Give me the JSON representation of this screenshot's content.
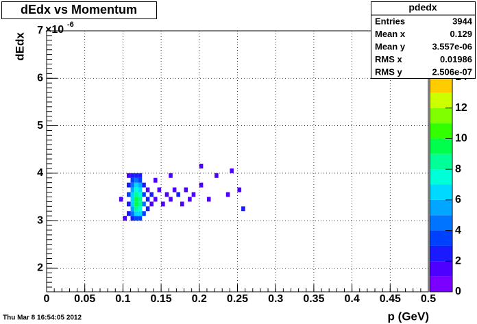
{
  "chart_data": {
    "type": "heatmap",
    "title": "dEdx vs Momentum",
    "xlabel": "p (GeV)",
    "ylabel": "dEdx",
    "y_exponent": {
      "base": "×10",
      "power": "-6"
    },
    "footer": "Thu Mar  8 16:54:05 2012",
    "xlim": [
      0,
      0.5
    ],
    "xticks": [
      0,
      0.05,
      0.1,
      0.15,
      0.2,
      0.25,
      0.3,
      0.35,
      0.4,
      0.45,
      0.5
    ],
    "ylim": [
      1.5,
      7
    ],
    "yticks": [
      2,
      3,
      4,
      5,
      6,
      7
    ],
    "zlim": [
      0,
      14
    ],
    "zticks": [
      0,
      2,
      4,
      6,
      8,
      10,
      12,
      14
    ],
    "grid": true,
    "xbin": 0.005,
    "ybin": 0.1,
    "palette": [
      "#7a00ff",
      "#4d00ff",
      "#1a1aff",
      "#0040ff",
      "#0073ff",
      "#00a6ff",
      "#00d9ff",
      "#00ffd9",
      "#00ff99",
      "#00ff4d",
      "#33ff00",
      "#80ff00",
      "#ccff00",
      "#ffcc00"
    ],
    "cells": [
      [
        0.105,
        3.1,
        2
      ],
      [
        0.105,
        3.3,
        2
      ],
      [
        0.105,
        3.5,
        3
      ],
      [
        0.105,
        3.7,
        2
      ],
      [
        0.105,
        3.9,
        1
      ],
      [
        0.11,
        3.0,
        2
      ],
      [
        0.11,
        3.1,
        4
      ],
      [
        0.11,
        3.2,
        5
      ],
      [
        0.11,
        3.3,
        6
      ],
      [
        0.11,
        3.4,
        6
      ],
      [
        0.11,
        3.5,
        6
      ],
      [
        0.11,
        3.6,
        5
      ],
      [
        0.11,
        3.7,
        4
      ],
      [
        0.11,
        3.8,
        3
      ],
      [
        0.11,
        3.9,
        2
      ],
      [
        0.115,
        3.0,
        3
      ],
      [
        0.115,
        3.1,
        6
      ],
      [
        0.115,
        3.2,
        8
      ],
      [
        0.115,
        3.3,
        9
      ],
      [
        0.115,
        3.4,
        9
      ],
      [
        0.115,
        3.5,
        8
      ],
      [
        0.115,
        3.6,
        7
      ],
      [
        0.115,
        3.7,
        6
      ],
      [
        0.115,
        3.8,
        4
      ],
      [
        0.115,
        3.9,
        2
      ],
      [
        0.12,
        3.0,
        3
      ],
      [
        0.12,
        3.1,
        6
      ],
      [
        0.12,
        3.2,
        7
      ],
      [
        0.12,
        3.3,
        8
      ],
      [
        0.12,
        3.4,
        8
      ],
      [
        0.12,
        3.5,
        7
      ],
      [
        0.12,
        3.6,
        6
      ],
      [
        0.12,
        3.7,
        5
      ],
      [
        0.12,
        3.8,
        3
      ],
      [
        0.12,
        3.9,
        2
      ],
      [
        0.125,
        3.1,
        3
      ],
      [
        0.125,
        3.3,
        4
      ],
      [
        0.125,
        3.5,
        3
      ],
      [
        0.125,
        3.7,
        2
      ],
      [
        0.13,
        3.2,
        2
      ],
      [
        0.13,
        3.4,
        2
      ],
      [
        0.13,
        3.6,
        1
      ],
      [
        0.135,
        3.3,
        1
      ],
      [
        0.135,
        3.5,
        2
      ],
      [
        0.14,
        3.4,
        1
      ],
      [
        0.145,
        3.6,
        1
      ],
      [
        0.15,
        3.3,
        1
      ],
      [
        0.155,
        3.5,
        1
      ],
      [
        0.16,
        3.4,
        1
      ],
      [
        0.165,
        3.6,
        1
      ],
      [
        0.17,
        3.5,
        2
      ],
      [
        0.175,
        3.3,
        1
      ],
      [
        0.18,
        3.6,
        1
      ],
      [
        0.185,
        3.4,
        1
      ],
      [
        0.19,
        3.5,
        1
      ],
      [
        0.2,
        3.7,
        1
      ],
      [
        0.21,
        3.4,
        1
      ],
      [
        0.22,
        3.9,
        1
      ],
      [
        0.235,
        3.5,
        1
      ],
      [
        0.25,
        3.6,
        1
      ],
      [
        0.255,
        3.2,
        2
      ],
      [
        0.095,
        3.4,
        1
      ],
      [
        0.1,
        3.0,
        1
      ],
      [
        0.2,
        4.1,
        1
      ],
      [
        0.24,
        4.0,
        1
      ],
      [
        0.14,
        3.8,
        1
      ],
      [
        0.16,
        3.9,
        1
      ]
    ],
    "stats": {
      "name": "pdedx",
      "rows": [
        [
          "Entries",
          "3944"
        ],
        [
          "Mean x",
          "0.129"
        ],
        [
          "Mean y",
          "3.557e-06"
        ],
        [
          "RMS x",
          "0.01986"
        ],
        [
          "RMS y",
          "2.506e-07"
        ]
      ]
    }
  }
}
